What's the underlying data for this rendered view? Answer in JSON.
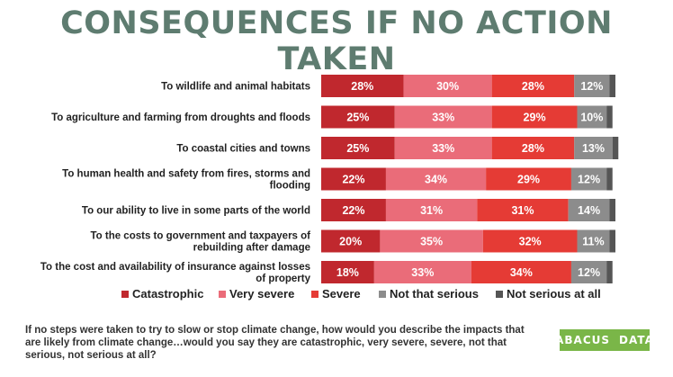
{
  "title": "CONSEQUENCES IF NO ACTION TAKEN",
  "question": "If no steps were taken to try to slow or stop climate change, how would you describe the impacts that are likely from climate change…would you say they are catastrophic, very severe, severe, not that serious, not serious at all?",
  "logo": {
    "left": "ABACUS",
    "right": "DATA",
    "color": "#7ab648"
  },
  "chart_data": {
    "type": "bar",
    "orientation": "horizontal",
    "stacked": true,
    "legend_position": "bottom",
    "categories": [
      [
        "To wildlife and animal habitats"
      ],
      [
        "To agriculture and farming from droughts and floods"
      ],
      [
        "To coastal cities and towns"
      ],
      [
        "To human health and safety from fires, storms and",
        "flooding"
      ],
      [
        "To our ability to live in some parts of the world"
      ],
      [
        "To the costs to government and taxpayers of",
        "rebuilding after damage"
      ],
      [
        "To the cost and availability of insurance against losses",
        "of property"
      ]
    ],
    "series": [
      {
        "name": "Catastrophic",
        "color": "#c0282e",
        "values": [
          28,
          25,
          25,
          22,
          22,
          20,
          18
        ]
      },
      {
        "name": "Very severe",
        "color": "#ea6c79",
        "values": [
          30,
          33,
          33,
          34,
          31,
          35,
          33
        ]
      },
      {
        "name": "Severe",
        "color": "#e53b35",
        "values": [
          28,
          29,
          28,
          29,
          31,
          32,
          34
        ]
      },
      {
        "name": "Not that serious",
        "color": "#8c8c8c",
        "values": [
          12,
          10,
          13,
          12,
          14,
          11,
          12
        ]
      },
      {
        "name": "Not serious at all",
        "color": "#555555",
        "values": [
          2,
          2,
          2,
          2,
          2,
          2,
          2
        ]
      }
    ],
    "data_labels": [
      [
        "28%",
        "30%",
        "28%",
        "12%"
      ],
      [
        "25%",
        "33%",
        "29%",
        "10%"
      ],
      [
        "25%",
        "33%",
        "28%",
        "13%"
      ],
      [
        "22%",
        "34%",
        "29%",
        "12%"
      ],
      [
        "22%",
        "31%",
        "31%",
        "14%"
      ],
      [
        "20%",
        "35%",
        "32%",
        "11%"
      ],
      [
        "18%",
        "33%",
        "34%",
        "12%"
      ]
    ]
  }
}
